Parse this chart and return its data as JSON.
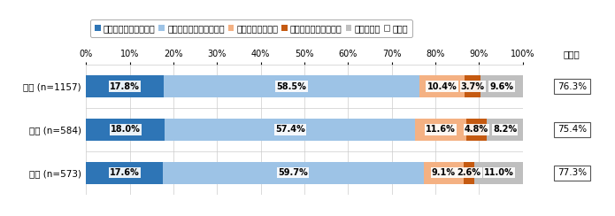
{
  "categories": [
    "全体 (n=1157)",
    "男性 (n=584)",
    "女性 (n=573)"
  ],
  "series": [
    {
      "label": "いつも確保できている",
      "color": "#2e75b6",
      "values": [
        17.8,
        18.0,
        17.6
      ]
    },
    {
      "label": "ある程度確保できている",
      "color": "#9dc3e6",
      "values": [
        58.5,
        57.4,
        59.7
      ]
    },
    {
      "label": "確保できていない",
      "color": "#f4b183",
      "values": [
        10.4,
        11.6,
        9.1
      ]
    },
    {
      "label": "全く確保できていない",
      "color": "#c55a11",
      "values": [
        3.7,
        4.8,
        2.6
      ]
    },
    {
      "label": "わからない",
      "color": "#bfbfbf",
      "values": [
        9.6,
        8.2,
        11.0
      ]
    },
    {
      "label": "その他",
      "color": "#ffffff",
      "values": [
        0.0,
        0.0,
        0.0
      ]
    }
  ],
  "affirmative": [
    "76.3%",
    "75.4%",
    "77.3%"
  ],
  "affirmative_label": "肯定計",
  "xticks": [
    0,
    10,
    20,
    30,
    40,
    50,
    60,
    70,
    80,
    90,
    100
  ],
  "bar_height": 0.52,
  "label_fontsize": 7.0,
  "legend_fontsize": 7.0,
  "tick_fontsize": 7.0,
  "cat_fontsize": 7.5,
  "aff_fontsize": 7.5,
  "background_color": "#ffffff"
}
